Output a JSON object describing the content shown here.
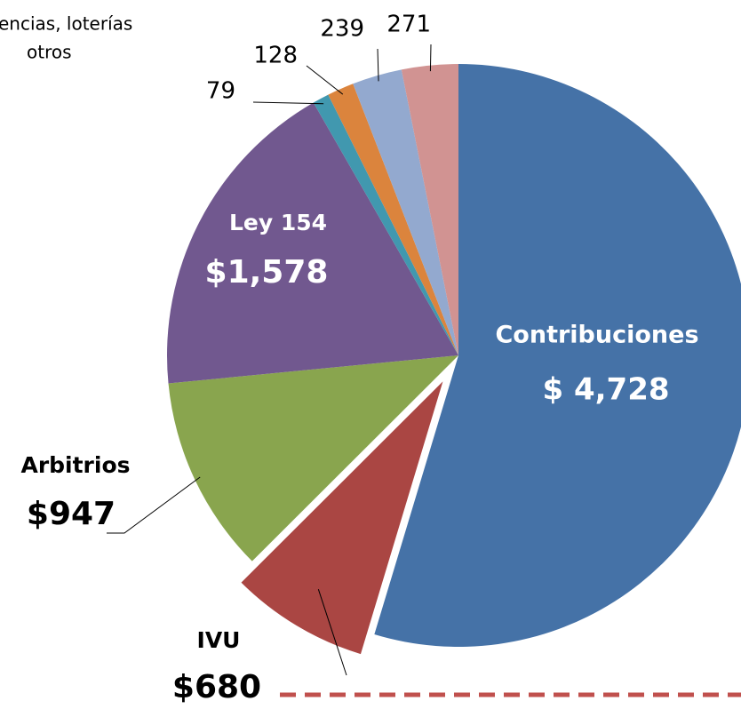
{
  "chart_data": {
    "type": "pie",
    "annotation": [
      "encias, loterías",
      "otros"
    ],
    "categories": [
      "Contribuciones",
      "IVU",
      "Arbitrios",
      "Ley 154",
      null,
      null,
      null,
      null
    ],
    "values": [
      4728,
      680,
      947,
      1578,
      79,
      128,
      239,
      271
    ],
    "value_labels": [
      "$ 4,728",
      "$680",
      "$947",
      "$1,578",
      "79",
      "128",
      "239",
      "271"
    ],
    "colors": [
      "#4572a7",
      "#aa4643",
      "#89a54e",
      "#71588f",
      "#4198af",
      "#db843d",
      "#93a9cf",
      "#d19392"
    ],
    "exploded": [
      false,
      true,
      false,
      false,
      false,
      false,
      false,
      false
    ]
  }
}
